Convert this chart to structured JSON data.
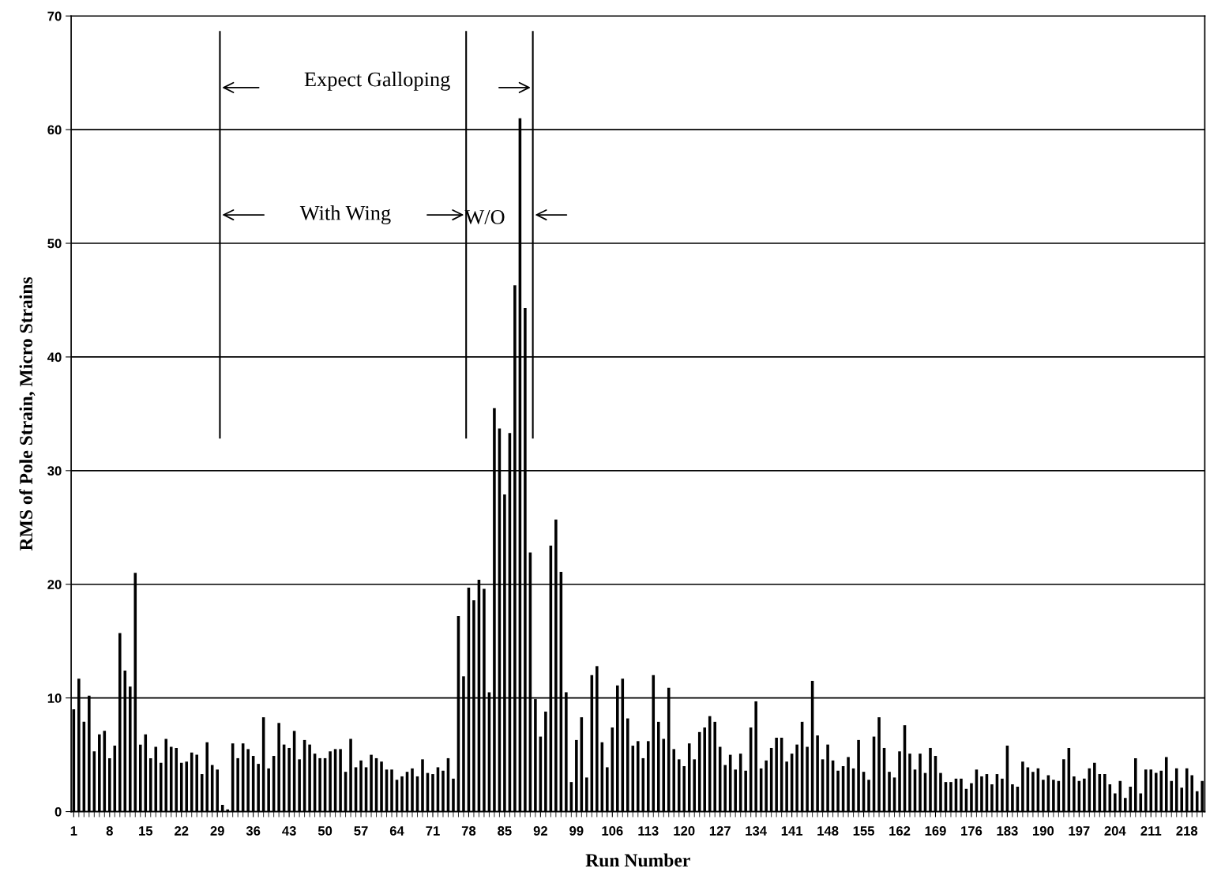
{
  "chart_data": {
    "type": "bar",
    "xlabel": "Run Number",
    "ylabel": "RMS of Pole Strain, Micro Strains",
    "x": [
      1,
      2,
      3,
      4,
      5,
      6,
      7,
      8,
      9,
      10,
      11,
      12,
      13,
      14,
      15,
      16,
      17,
      18,
      19,
      20,
      21,
      22,
      23,
      24,
      25,
      26,
      27,
      28,
      29,
      30,
      31,
      32,
      33,
      34,
      35,
      36,
      37,
      38,
      39,
      40,
      41,
      42,
      43,
      44,
      45,
      46,
      47,
      48,
      49,
      50,
      51,
      52,
      53,
      54,
      55,
      56,
      57,
      58,
      59,
      60,
      61,
      62,
      63,
      64,
      65,
      66,
      67,
      68,
      69,
      70,
      71,
      72,
      73,
      74,
      75,
      76,
      77,
      78,
      79,
      80,
      81,
      82,
      83,
      84,
      85,
      86,
      87,
      88,
      89,
      90,
      91,
      92,
      93,
      94,
      95,
      96,
      97,
      98,
      99,
      100,
      101,
      102,
      103,
      104,
      105,
      106,
      107,
      108,
      109,
      110,
      111,
      112,
      113,
      114,
      115,
      116,
      117,
      118,
      119,
      120,
      121,
      122,
      123,
      124,
      125,
      126,
      127,
      128,
      129,
      130,
      131,
      132,
      133,
      134,
      135,
      136,
      137,
      138,
      139,
      140,
      141,
      142,
      143,
      144,
      145,
      146,
      147,
      148,
      149,
      150,
      151,
      152,
      153,
      154,
      155,
      156,
      157,
      158,
      159,
      160,
      161,
      162,
      163,
      164,
      165,
      166,
      167,
      168,
      169,
      170,
      171,
      172,
      173,
      174,
      175,
      176,
      177,
      178,
      179,
      180,
      181,
      182,
      183,
      184,
      185,
      186,
      187,
      188,
      189,
      190,
      191,
      192,
      193,
      194,
      195,
      196,
      197,
      198,
      199,
      200,
      201,
      202,
      203,
      204,
      205,
      206,
      207,
      208,
      209,
      210,
      211,
      212,
      213,
      214,
      215,
      216,
      217,
      218,
      219,
      220,
      221
    ],
    "values": [
      9.0,
      11.7,
      7.9,
      10.2,
      5.3,
      6.8,
      7.1,
      4.7,
      5.8,
      15.7,
      12.4,
      11.0,
      21.0,
      5.9,
      6.8,
      4.7,
      5.7,
      4.3,
      6.4,
      5.7,
      5.6,
      4.3,
      4.4,
      5.2,
      5.0,
      3.3,
      6.1,
      4.1,
      3.7,
      0.6,
      0.2,
      6.0,
      4.7,
      6.0,
      5.5,
      4.9,
      4.2,
      8.3,
      3.8,
      4.9,
      7.8,
      5.9,
      5.6,
      7.1,
      4.6,
      6.3,
      5.9,
      5.1,
      4.7,
      4.7,
      5.3,
      5.5,
      5.5,
      3.5,
      6.4,
      3.9,
      4.5,
      3.9,
      5.0,
      4.7,
      4.4,
      3.7,
      3.7,
      2.8,
      3.1,
      3.5,
      3.8,
      3.1,
      4.6,
      3.4,
      3.3,
      3.9,
      3.6,
      4.7,
      2.9,
      17.2,
      11.9,
      19.7,
      18.6,
      20.4,
      19.6,
      10.5,
      35.5,
      33.7,
      27.9,
      33.3,
      46.3,
      61.0,
      44.3,
      22.8,
      9.9,
      6.6,
      8.8,
      23.4,
      25.7,
      21.1,
      10.5,
      2.6,
      6.3,
      8.3,
      3.0,
      12.0,
      12.8,
      6.1,
      3.9,
      7.4,
      11.1,
      11.7,
      8.2,
      5.8,
      6.2,
      4.7,
      6.2,
      12.0,
      7.9,
      6.4,
      10.9,
      5.5,
      4.6,
      4.0,
      6.0,
      4.6,
      7.0,
      7.4,
      8.4,
      7.9,
      5.7,
      4.1,
      5.0,
      3.7,
      5.1,
      3.6,
      7.4,
      9.7,
      3.8,
      4.5,
      5.6,
      6.5,
      6.5,
      4.4,
      5.1,
      5.9,
      7.9,
      5.7,
      11.5,
      6.7,
      4.6,
      5.9,
      4.5,
      3.6,
      4.0,
      4.8,
      3.8,
      6.3,
      3.5,
      2.8,
      6.6,
      8.3,
      5.6,
      3.5,
      3.0,
      5.3,
      7.6,
      5.1,
      3.7,
      5.1,
      3.4,
      5.6,
      4.9,
      3.4,
      2.6,
      2.6,
      2.9,
      2.9,
      2.0,
      2.5,
      3.7,
      3.1,
      3.3,
      2.4,
      3.3,
      2.9,
      5.8,
      2.4,
      2.2,
      4.4,
      3.9,
      3.5,
      3.8,
      2.8,
      3.2,
      2.8,
      2.7,
      4.6,
      5.6,
      3.1,
      2.7,
      2.9,
      3.8,
      4.3,
      3.3,
      3.3,
      2.4,
      1.6,
      2.7,
      1.2,
      2.2,
      4.7,
      1.6,
      3.7,
      3.7,
      3.4,
      3.6,
      4.8,
      2.7,
      3.8,
      2.1,
      3.8,
      3.2,
      1.8,
      2.7
    ],
    "color": "#000000",
    "xlim": [
      0.5,
      221.5
    ],
    "xticks": [
      1,
      8,
      15,
      22,
      29,
      36,
      43,
      50,
      57,
      64,
      71,
      78,
      85,
      92,
      99,
      106,
      113,
      120,
      127,
      134,
      141,
      148,
      155,
      162,
      169,
      176,
      183,
      190,
      197,
      204,
      211,
      218
    ],
    "ylim": [
      0,
      70
    ],
    "yticks": [
      0,
      10,
      20,
      30,
      40,
      50,
      60,
      70
    ],
    "grid": "y",
    "ref_lines": [
      {
        "axis": "x",
        "value": 29.5,
        "label": null,
        "color": "#000000"
      },
      {
        "axis": "x",
        "value": 77.5,
        "label": null,
        "color": "#000000"
      },
      {
        "axis": "x",
        "value": 90.5,
        "label": null,
        "color": "#000000"
      }
    ],
    "annotations": [
      "Expect Galloping",
      "With Wing",
      "W/O"
    ]
  }
}
